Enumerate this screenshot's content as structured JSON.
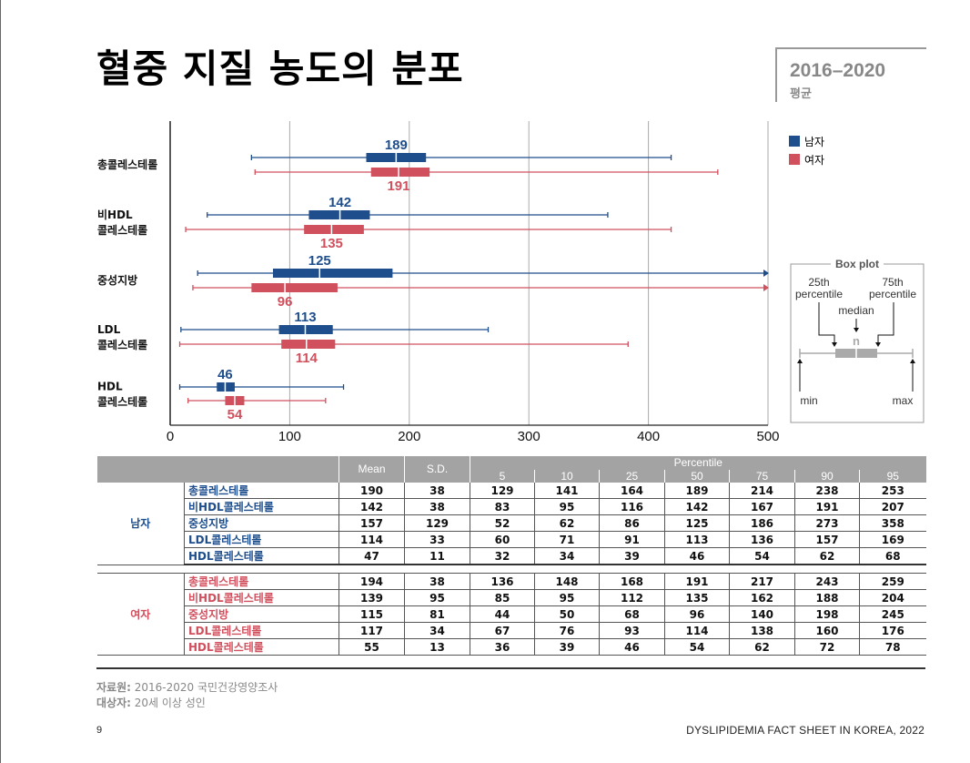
{
  "header": {
    "title": "혈중 지질 농도의 분포",
    "badge_year": "2016–2020",
    "badge_sub": "평균"
  },
  "legend": {
    "male": "남자",
    "female": "여자",
    "male_color": "#1f4e8c",
    "female_color": "#d0505e"
  },
  "boxplot_key": {
    "title": "Box plot",
    "p25": [
      "25th",
      "percentile"
    ],
    "p75": [
      "75th",
      "percentile"
    ],
    "median": "median",
    "n": "n",
    "min": "min",
    "max": "max"
  },
  "chart_data": {
    "type": "boxplot",
    "x_ticks": [
      0,
      100,
      200,
      300,
      400,
      500
    ],
    "xlim": [
      0,
      500
    ],
    "grid": "vertical",
    "legend_position": "top-right",
    "categories": [
      {
        "label": [
          "총콜레스테롤"
        ],
        "male": {
          "min": 68,
          "p25": 164,
          "median": 189,
          "p75": 214,
          "max": 419,
          "label": "189"
        },
        "female": {
          "min": 71,
          "p25": 168,
          "median": 191,
          "p75": 217,
          "max": 458,
          "label": "191"
        }
      },
      {
        "label": [
          "비HDL",
          "콜레스테롤"
        ],
        "male": {
          "min": 31,
          "p25": 116,
          "median": 142,
          "p75": 167,
          "max": 366,
          "label": "142"
        },
        "female": {
          "min": 13,
          "p25": 112,
          "median": 135,
          "p75": 162,
          "max": 419,
          "label": "135"
        }
      },
      {
        "label": [
          "중성지방"
        ],
        "male": {
          "min": 23,
          "p25": 86,
          "median": 125,
          "p75": 186,
          "max": 500,
          "label": "125"
        },
        "female": {
          "min": 19,
          "p25": 68,
          "median": 96,
          "p75": 140,
          "max": 500,
          "label": "96"
        }
      },
      {
        "label": [
          "LDL",
          "콜레스테롤"
        ],
        "male": {
          "min": 9,
          "p25": 91,
          "median": 113,
          "p75": 136,
          "max": 266,
          "label": "113"
        },
        "female": {
          "min": 8,
          "p25": 93,
          "median": 114,
          "p75": 138,
          "max": 383,
          "label": "114"
        }
      },
      {
        "label": [
          "HDL",
          "콜레스테롤"
        ],
        "male": {
          "min": 8,
          "p25": 39,
          "median": 46,
          "p75": 54,
          "max": 145,
          "label": "46"
        },
        "female": {
          "min": 15,
          "p25": 46,
          "median": 54,
          "p75": 62,
          "max": 130,
          "label": "54"
        }
      }
    ]
  },
  "table": {
    "head_mean": "Mean",
    "head_sd": "S.D.",
    "head_percentile": "Percentile",
    "percentiles": [
      "5",
      "10",
      "25",
      "50",
      "75",
      "90",
      "95"
    ],
    "male_label": "남자",
    "female_label": "여자",
    "male_rows": [
      {
        "name": "총콜레스테롤",
        "vals": [
          "190",
          "38",
          "129",
          "141",
          "164",
          "189",
          "214",
          "238",
          "253"
        ]
      },
      {
        "name": "비HDL콜레스테롤",
        "vals": [
          "142",
          "38",
          "83",
          "95",
          "116",
          "142",
          "167",
          "191",
          "207"
        ]
      },
      {
        "name": "중성지방",
        "vals": [
          "157",
          "129",
          "52",
          "62",
          "86",
          "125",
          "186",
          "273",
          "358"
        ]
      },
      {
        "name": "LDL콜레스테롤",
        "vals": [
          "114",
          "33",
          "60",
          "71",
          "91",
          "113",
          "136",
          "157",
          "169"
        ]
      },
      {
        "name": "HDL콜레스테롤",
        "vals": [
          "47",
          "11",
          "32",
          "34",
          "39",
          "46",
          "54",
          "62",
          "68"
        ]
      }
    ],
    "female_rows": [
      {
        "name": "총콜레스테롤",
        "vals": [
          "194",
          "38",
          "136",
          "148",
          "168",
          "191",
          "217",
          "243",
          "259"
        ]
      },
      {
        "name": "비HDL콜레스테롤",
        "vals": [
          "139",
          "95",
          "85",
          "95",
          "112",
          "135",
          "162",
          "188",
          "204"
        ]
      },
      {
        "name": "중성지방",
        "vals": [
          "115",
          "81",
          "44",
          "50",
          "68",
          "96",
          "140",
          "198",
          "245"
        ]
      },
      {
        "name": "LDL콜레스테롤",
        "vals": [
          "117",
          "34",
          "67",
          "76",
          "93",
          "114",
          "138",
          "160",
          "176"
        ]
      },
      {
        "name": "HDL콜레스테롤",
        "vals": [
          "55",
          "13",
          "36",
          "39",
          "46",
          "54",
          "62",
          "72",
          "78"
        ]
      }
    ]
  },
  "source": {
    "label1": "자료원:",
    "text1": "2016-2020 국민건강영양조사",
    "label2": "대상자:",
    "text2": "20세 이상 성인"
  },
  "footer": {
    "page": "9",
    "publication": "DYSLIPIDEMIA FACT SHEET IN KOREA, 2022"
  }
}
